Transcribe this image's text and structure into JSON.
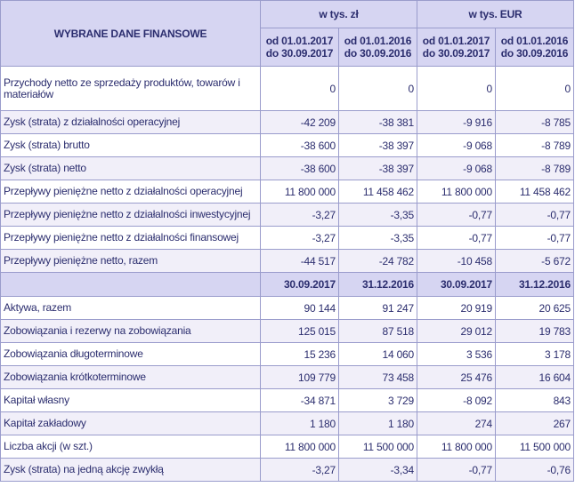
{
  "header": {
    "title": "WYBRANE DANE FINANSOWE",
    "unit_pln": "w tys. zł",
    "unit_eur": "w tys. EUR",
    "periods": [
      [
        "od 01.01.2017",
        "do 30.09.2017"
      ],
      [
        "od 01.01.2016",
        "do 30.09.2016"
      ],
      [
        "od 01.01.2017",
        "do 30.09.2017"
      ],
      [
        "od 01.01.2016",
        "do 30.09.2016"
      ]
    ]
  },
  "flows": [
    {
      "label": "Przychody netto ze sprzedaży produktów, towarów i materiałów",
      "values": [
        "0",
        "0",
        "0",
        "0"
      ]
    },
    {
      "label": "Zysk (strata) z działalności operacyjnej",
      "values": [
        "-42 209",
        "-38 381",
        "-9 916",
        "-8 785"
      ]
    },
    {
      "label": "Zysk (strata) brutto",
      "values": [
        "-38 600",
        "-38 397",
        "-9 068",
        "-8 789"
      ]
    },
    {
      "label": "Zysk (strata) netto",
      "values": [
        "-38 600",
        "-38 397",
        "-9 068",
        "-8 789"
      ]
    },
    {
      "label": "Przepływy pieniężne netto z działalności operacyjnej",
      "values": [
        "11 800 000",
        "11 458 462",
        "11 800 000",
        "11 458 462"
      ]
    },
    {
      "label": "Przepływy pieniężne netto z działalności inwestycyjnej",
      "values": [
        "-3,27",
        "-3,35",
        "-0,77",
        "-0,77"
      ]
    },
    {
      "label": "Przepływy pieniężne netto z działalności finansowej",
      "values": [
        "-3,27",
        "-3,35",
        "-0,77",
        "-0,77"
      ]
    },
    {
      "label": "Przepływy pieniężne netto, razem",
      "values": [
        "-44 517",
        "-24 782",
        "-10 458",
        "-5 672"
      ]
    }
  ],
  "balance_dates": [
    "30.09.2017",
    "31.12.2016",
    "30.09.2017",
    "31.12.2016"
  ],
  "balance": [
    {
      "label": "Aktywa, razem",
      "values": [
        "90 144",
        "91 247",
        "20 919",
        "20 625"
      ]
    },
    {
      "label": "Zobowiązania i rezerwy na zobowiązania",
      "values": [
        "125 015",
        "87 518",
        "29 012",
        "19 783"
      ]
    },
    {
      "label": "Zobowiązania długoterminowe",
      "values": [
        "15 236",
        "14 060",
        "3 536",
        "3 178"
      ]
    },
    {
      "label": "Zobowiązania krótkoterminowe",
      "values": [
        "109 779",
        "73 458",
        "25 476",
        "16 604"
      ]
    },
    {
      "label": "Kapitał własny",
      "values": [
        "-34 871",
        "3 729",
        "-8 092",
        "843"
      ]
    },
    {
      "label": "Kapitał zakładowy",
      "values": [
        "1 180",
        "1 180",
        "274",
        "267"
      ]
    },
    {
      "label": "Liczba akcji (w szt.)",
      "values": [
        "11 800 000",
        "11 500 000",
        "11 800 000",
        "11 500 000"
      ]
    },
    {
      "label": "Zysk (strata) na jedną akcję zwykłą",
      "values": [
        "-3,27",
        "-3,34",
        "-0,77",
        "-0,76"
      ]
    }
  ],
  "colors": {
    "header_bg": "#d6d5f2",
    "row_shade": "#f1eff9",
    "border": "#9a9ccc",
    "text": "#2b2d6e"
  }
}
